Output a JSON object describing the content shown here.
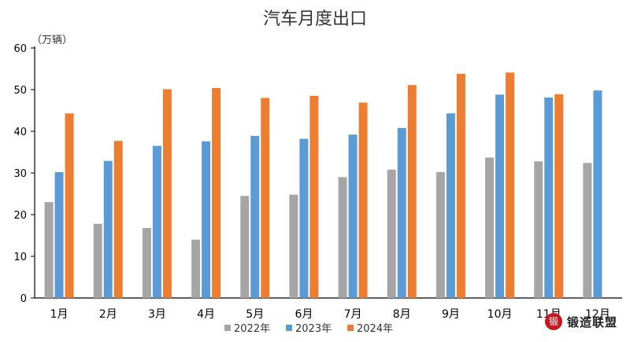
{
  "chart_data": {
    "type": "bar",
    "title": "汽车月度出口",
    "unit_label": "（万辆）",
    "categories": [
      "1月",
      "2月",
      "3月",
      "4月",
      "5月",
      "6月",
      "7月",
      "8月",
      "9月",
      "10月",
      "11月",
      "12月"
    ],
    "ylim": [
      0,
      60
    ],
    "yticks": [
      0,
      10,
      20,
      30,
      40,
      50,
      60
    ],
    "grid": false,
    "legend_position": "bottom",
    "series": [
      {
        "name": "2022年",
        "color": "#a5a5a5",
        "values": [
          23.0,
          17.8,
          16.8,
          14.0,
          24.5,
          24.8,
          29.0,
          30.8,
          30.2,
          33.7,
          32.8,
          32.4
        ]
      },
      {
        "name": "2023年",
        "color": "#5b9bd5",
        "values": [
          30.2,
          32.9,
          36.5,
          37.6,
          38.9,
          38.2,
          39.2,
          40.8,
          44.3,
          48.8,
          48.1,
          49.8
        ]
      },
      {
        "name": "2024年",
        "color": "#ed7d31",
        "values": [
          44.3,
          37.7,
          50.1,
          50.4,
          48.0,
          48.5,
          46.9,
          51.1,
          53.8,
          54.1,
          48.9,
          null
        ]
      }
    ]
  },
  "watermark": {
    "text": "锻造联盟",
    "logo_icon": "forge-alliance-logo"
  }
}
